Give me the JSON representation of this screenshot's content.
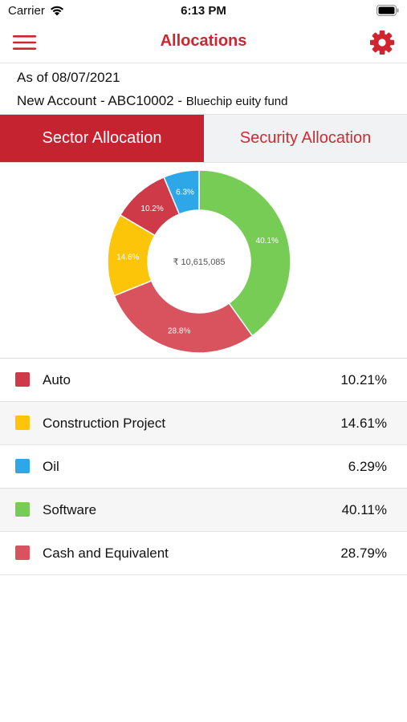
{
  "status_bar": {
    "carrier": "Carrier",
    "time": "6:13 PM",
    "wifi_icon": "wifi-icon",
    "battery_icon": "battery-icon"
  },
  "nav": {
    "title": "Allocations",
    "menu_icon": "hamburger-menu-icon",
    "settings_icon": "gear-icon",
    "accent": "#d0252f"
  },
  "info": {
    "as_of": "As of 08/07/2021",
    "account": "New Account - ABC10002 - ",
    "fund": "Bluechip euity fund"
  },
  "tabs": [
    {
      "label": "Sector Allocation",
      "selected": true
    },
    {
      "label": "Security Allocation",
      "selected": false
    }
  ],
  "chart_data": {
    "type": "pie",
    "style": "donut",
    "center_label": "₹ 10,615,085",
    "slices": [
      {
        "name": "Software",
        "value": 40.11,
        "label": "40.1%",
        "color": "#77cc55"
      },
      {
        "name": "Cash and Equivalent",
        "value": 28.79,
        "label": "28.8%",
        "color": "#d9535f"
      },
      {
        "name": "Construction Project",
        "value": 14.61,
        "label": "14.6%",
        "color": "#fcc50a"
      },
      {
        "name": "Auto",
        "value": 10.21,
        "label": "10.2%",
        "color": "#cf3a48"
      },
      {
        "name": "Oil",
        "value": 6.29,
        "label": "6.3%",
        "color": "#2ea7e8"
      }
    ]
  },
  "legend": [
    {
      "label": "Auto",
      "value": "10.21%",
      "color": "#cf3a48"
    },
    {
      "label": "Construction Project",
      "value": "14.61%",
      "color": "#fcc50a"
    },
    {
      "label": "Oil",
      "value": "6.29%",
      "color": "#2ea7e8"
    },
    {
      "label": "Software",
      "value": "40.11%",
      "color": "#77cc55"
    },
    {
      "label": "Cash and Equivalent",
      "value": "28.79%",
      "color": "#d9535f"
    }
  ]
}
